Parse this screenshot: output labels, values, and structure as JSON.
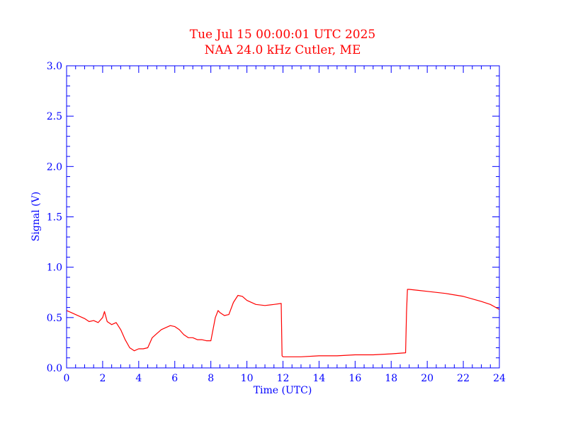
{
  "colors": {
    "title": "#ff0000",
    "axes": "#0000ff",
    "series": "#ff0000",
    "background": "#ffffff"
  },
  "chart_data": {
    "type": "line",
    "title": "Tue Jul 15 00:00:01 UTC 2025",
    "subtitle": "NAA 24.0 kHz Cutler, ME",
    "xlabel": "Time (UTC)",
    "ylabel": "Signal (V)",
    "xlim": [
      0,
      24
    ],
    "ylim": [
      0,
      3
    ],
    "xticks": [
      "0",
      "2",
      "4",
      "6",
      "8",
      "10",
      "12",
      "14",
      "16",
      "18",
      "20",
      "22",
      "24"
    ],
    "yticks": [
      "0.0",
      "0.5",
      "1.0",
      "1.5",
      "2.0",
      "2.5",
      "3.0"
    ],
    "grid": false,
    "series": [
      {
        "x": [
          0.0,
          0.25,
          0.5,
          0.75,
          1.0,
          1.25,
          1.5,
          1.75,
          2.0,
          2.1,
          2.25,
          2.5,
          2.75,
          3.0,
          3.25,
          3.5,
          3.75,
          4.0,
          4.25,
          4.5,
          4.75,
          5.0,
          5.25,
          5.5,
          5.75,
          6.0,
          6.25,
          6.5,
          6.75,
          7.0,
          7.25,
          7.5,
          7.75,
          8.0,
          8.25,
          8.4,
          8.5,
          8.75,
          9.0,
          9.25,
          9.5,
          9.75,
          10.0,
          10.5,
          11.0,
          11.5,
          11.9,
          11.95,
          12.0,
          12.5,
          13.0,
          14.0,
          15.0,
          16.0,
          17.0,
          18.0,
          18.8,
          18.85,
          18.9,
          19.0,
          19.5,
          20.0,
          21.0,
          22.0,
          23.0,
          23.5,
          24.0
        ],
        "values": [
          0.57,
          0.55,
          0.53,
          0.51,
          0.49,
          0.46,
          0.47,
          0.45,
          0.5,
          0.56,
          0.46,
          0.43,
          0.45,
          0.38,
          0.28,
          0.2,
          0.17,
          0.19,
          0.19,
          0.2,
          0.3,
          0.34,
          0.38,
          0.4,
          0.42,
          0.41,
          0.38,
          0.33,
          0.3,
          0.3,
          0.28,
          0.28,
          0.27,
          0.27,
          0.5,
          0.57,
          0.55,
          0.52,
          0.53,
          0.65,
          0.72,
          0.71,
          0.67,
          0.63,
          0.62,
          0.63,
          0.64,
          0.12,
          0.11,
          0.11,
          0.11,
          0.12,
          0.12,
          0.13,
          0.13,
          0.14,
          0.15,
          0.55,
          0.78,
          0.78,
          0.77,
          0.76,
          0.74,
          0.71,
          0.66,
          0.63,
          0.58
        ]
      }
    ]
  }
}
